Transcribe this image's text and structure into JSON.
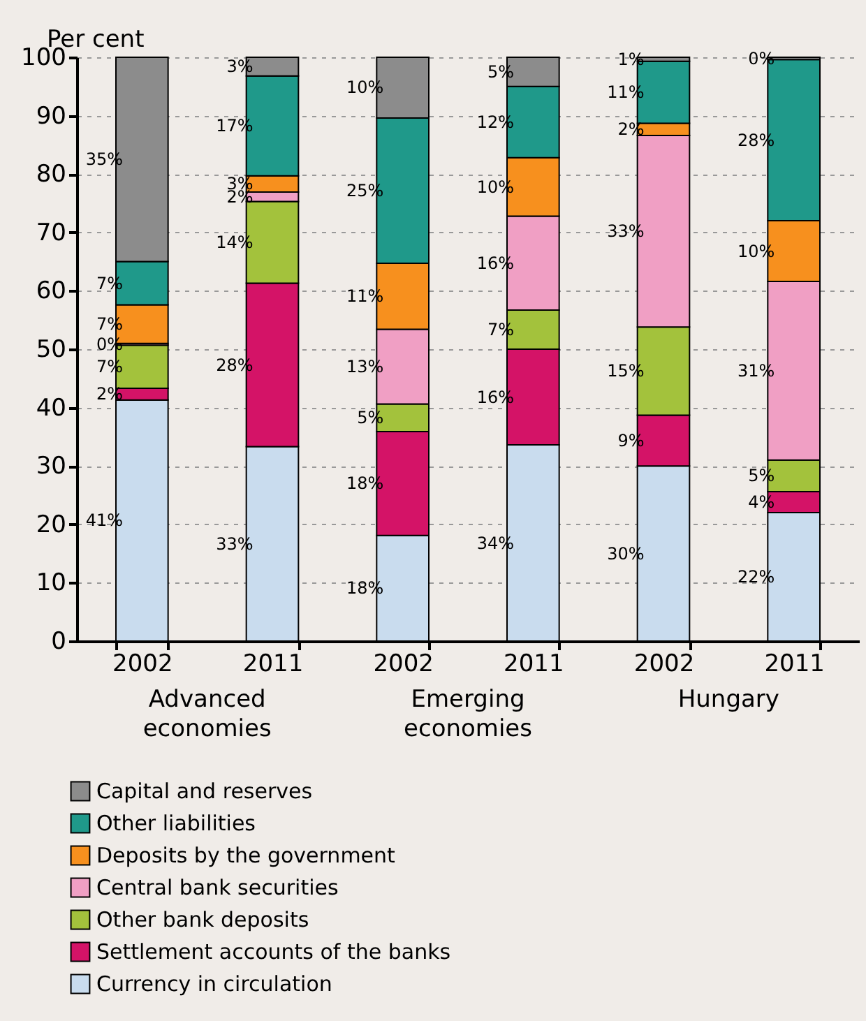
{
  "chart_data": {
    "type": "bar",
    "stacked": true,
    "ylabel": "Per cent",
    "categories": [
      "2002",
      "2011",
      "2002",
      "2011",
      "2002",
      "2011"
    ],
    "annotations": [
      "Advanced economies",
      "Emerging economies",
      "Hungary"
    ],
    "ylim": [
      0,
      100
    ],
    "yticks": [
      0,
      10,
      20,
      30,
      40,
      50,
      60,
      70,
      80,
      90,
      100
    ],
    "grid": "y",
    "legend": "bottom",
    "series": [
      {
        "name": "Currency in circulation",
        "color": "#c9dcee",
        "values": [
          41.3,
          33.3,
          18.1,
          33.6,
          30,
          22
        ],
        "value_labels": [
          "41%",
          "33%",
          "18%",
          "34%",
          "30%",
          "22%"
        ]
      },
      {
        "name": "Settlement accounts of the banks",
        "color": "#d41367",
        "values": [
          2.0,
          28.0,
          17.8,
          16.4,
          8.7,
          3.6
        ],
        "value_labels": [
          "2%",
          "28%",
          "18%",
          "16%",
          "9%",
          "4%"
        ]
      },
      {
        "name": "Other bank deposits",
        "color": "#a3c23c",
        "values": [
          7.4,
          14.0,
          4.7,
          6.7,
          15.1,
          5.4
        ],
        "value_labels": [
          "7%",
          "14%",
          "5%",
          "7%",
          "15%",
          "5%"
        ]
      },
      {
        "name": "Central bank securities",
        "color": "#f09fc4",
        "values": [
          0.3,
          1.6,
          12.8,
          16.1,
          32.8,
          30.6
        ],
        "value_labels": [
          "0%",
          "2%",
          "13%",
          "16%",
          "33%",
          "31%"
        ]
      },
      {
        "name": "Deposits by the government",
        "color": "#f7901e",
        "values": [
          6.6,
          2.8,
          11.3,
          10.0,
          2.1,
          10.4
        ],
        "value_labels": [
          "7%",
          "3%",
          "11%",
          "10%",
          "2%",
          "10%"
        ]
      },
      {
        "name": "Other liabilities",
        "color": "#1f998a",
        "values": [
          7.4,
          17.1,
          24.9,
          12.2,
          10.6,
          27.6
        ],
        "value_labels": [
          "7%",
          "17%",
          "25%",
          "12%",
          "11%",
          "28%"
        ]
      },
      {
        "name": "Capital and reserves",
        "color": "#8c8c8c",
        "values": [
          35.0,
          3.2,
          10.4,
          5.0,
          0.7,
          0.4
        ],
        "value_labels": [
          "35%",
          "3%",
          "10%",
          "5%",
          "1%",
          "0%"
        ]
      }
    ]
  }
}
